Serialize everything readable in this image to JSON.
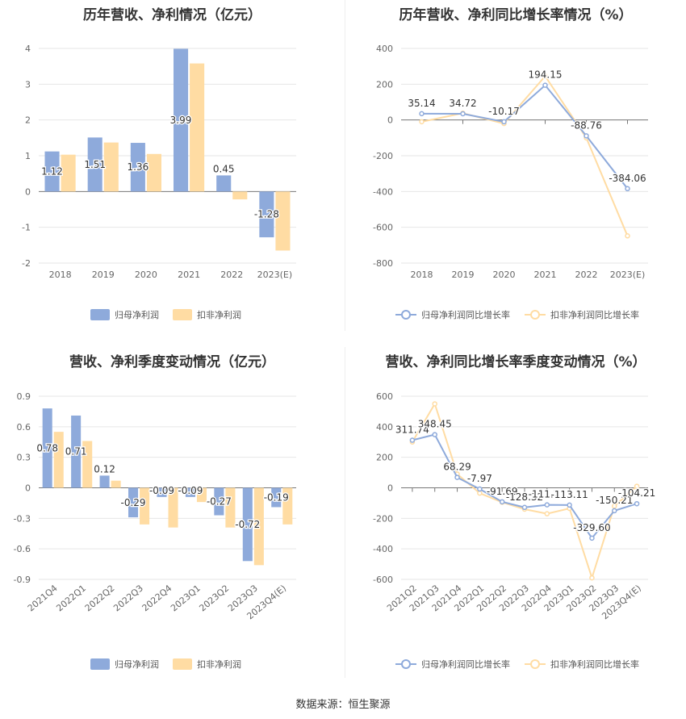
{
  "colors": {
    "primary": "#8eaadb",
    "secondary": "#ffdca3",
    "grid": "#e6e6e6",
    "axis": "#999999",
    "text": "#333333"
  },
  "source": "数据来源：恒生聚源",
  "charts": [
    {
      "title": "历年营收、净利情况（亿元）",
      "chart_data": {
        "type": "bar",
        "categories": [
          "2018",
          "2019",
          "2020",
          "2021",
          "2022",
          "2023(E)"
        ],
        "series": [
          {
            "name": "归母净利润",
            "values": [
              1.12,
              1.51,
              1.36,
              3.99,
              0.45,
              -1.28
            ],
            "labels": [
              "1.12",
              "1.51",
              "1.36",
              "3.99",
              "0.45",
              "-1.28"
            ]
          },
          {
            "name": "扣非净利润",
            "values": [
              1.03,
              1.37,
              1.05,
              3.58,
              -0.22,
              -1.65
            ]
          }
        ],
        "ylim": [
          -2,
          4
        ],
        "yticks": [
          "-2",
          "-1",
          "0",
          "1",
          "2",
          "3",
          "4"
        ],
        "legend": "bottom"
      }
    },
    {
      "title": "历年营收、净利同比增长率情况（%）",
      "chart_data": {
        "type": "line",
        "categories": [
          "2018",
          "2019",
          "2020",
          "2021",
          "2022",
          "2023(E)"
        ],
        "series": [
          {
            "name": "归母净利润同比增长率",
            "values": [
              35.14,
              34.72,
              -10.17,
              194.15,
              -88.76,
              -384.06
            ],
            "labels": [
              "35.14",
              "34.72",
              "-10.17",
              "194.15",
              "-88.76",
              "-384.06"
            ]
          },
          {
            "name": "扣非净利润同比增长率",
            "values": [
              -10,
              38,
              -20,
              245,
              -100,
              -648
            ]
          }
        ],
        "ylim": [
          -800,
          400
        ],
        "yticks": [
          "-800",
          "-600",
          "-400",
          "-200",
          "0",
          "200",
          "400"
        ],
        "legend": "bottom"
      }
    },
    {
      "title": "营收、净利季度变动情况（亿元）",
      "chart_data": {
        "type": "bar",
        "categories": [
          "2021Q4",
          "2022Q1",
          "2022Q2",
          "2022Q3",
          "2022Q4",
          "2023Q1",
          "2023Q2",
          "2023Q3",
          "2023Q4(E)"
        ],
        "series": [
          {
            "name": "归母净利润",
            "values": [
              0.78,
              0.71,
              0.12,
              -0.29,
              -0.09,
              -0.09,
              -0.27,
              -0.72,
              -0.19
            ],
            "labels": [
              "0.78",
              "0.71",
              "0.12",
              "-0.29",
              "-0.09",
              "-0.09",
              "-0.27",
              "-0.72",
              "-0.19"
            ]
          },
          {
            "name": "扣非净利润",
            "values": [
              0.55,
              0.46,
              0.07,
              -0.36,
              -0.39,
              -0.14,
              -0.39,
              -0.76,
              -0.36
            ]
          }
        ],
        "ylim": [
          -0.9,
          0.9
        ],
        "yticks": [
          "-0.9",
          "-0.6",
          "-0.3",
          "0",
          "0.3",
          "0.6",
          "0.9"
        ],
        "legend": "bottom"
      }
    },
    {
      "title": "营收、净利同比增长率季度变动情况（%）",
      "chart_data": {
        "type": "line",
        "categories": [
          "2021Q2",
          "2021Q3",
          "2021Q4",
          "2022Q1",
          "2022Q2",
          "2022Q3",
          "2022Q4",
          "2023Q1",
          "2023Q2",
          "2023Q3",
          "2023Q4(E)"
        ],
        "series": [
          {
            "name": "归母净利润同比增长率",
            "values": [
              311.74,
              348.45,
              68.29,
              -7.97,
              -91.69,
              -128.32,
              -111.71,
              -113.11,
              -329.6,
              -150.21,
              -104.21
            ],
            "labels": [
              "311.74",
              "348.45",
              "68.29",
              "-7.97",
              "-91.69",
              "-128.32",
              "-111.71",
              "-113.11",
              "-329.60",
              "-150.21",
              "-104.21"
            ]
          },
          {
            "name": "扣非净利润同比增长率",
            "values": [
              300,
              550,
              90,
              -35,
              -95,
              -140,
              -170,
              -135,
              -590,
              -120,
              10
            ]
          }
        ],
        "ylim": [
          -600,
          600
        ],
        "yticks": [
          "-600",
          "-400",
          "-200",
          "0",
          "200",
          "400",
          "600"
        ],
        "legend": "bottom"
      }
    }
  ]
}
